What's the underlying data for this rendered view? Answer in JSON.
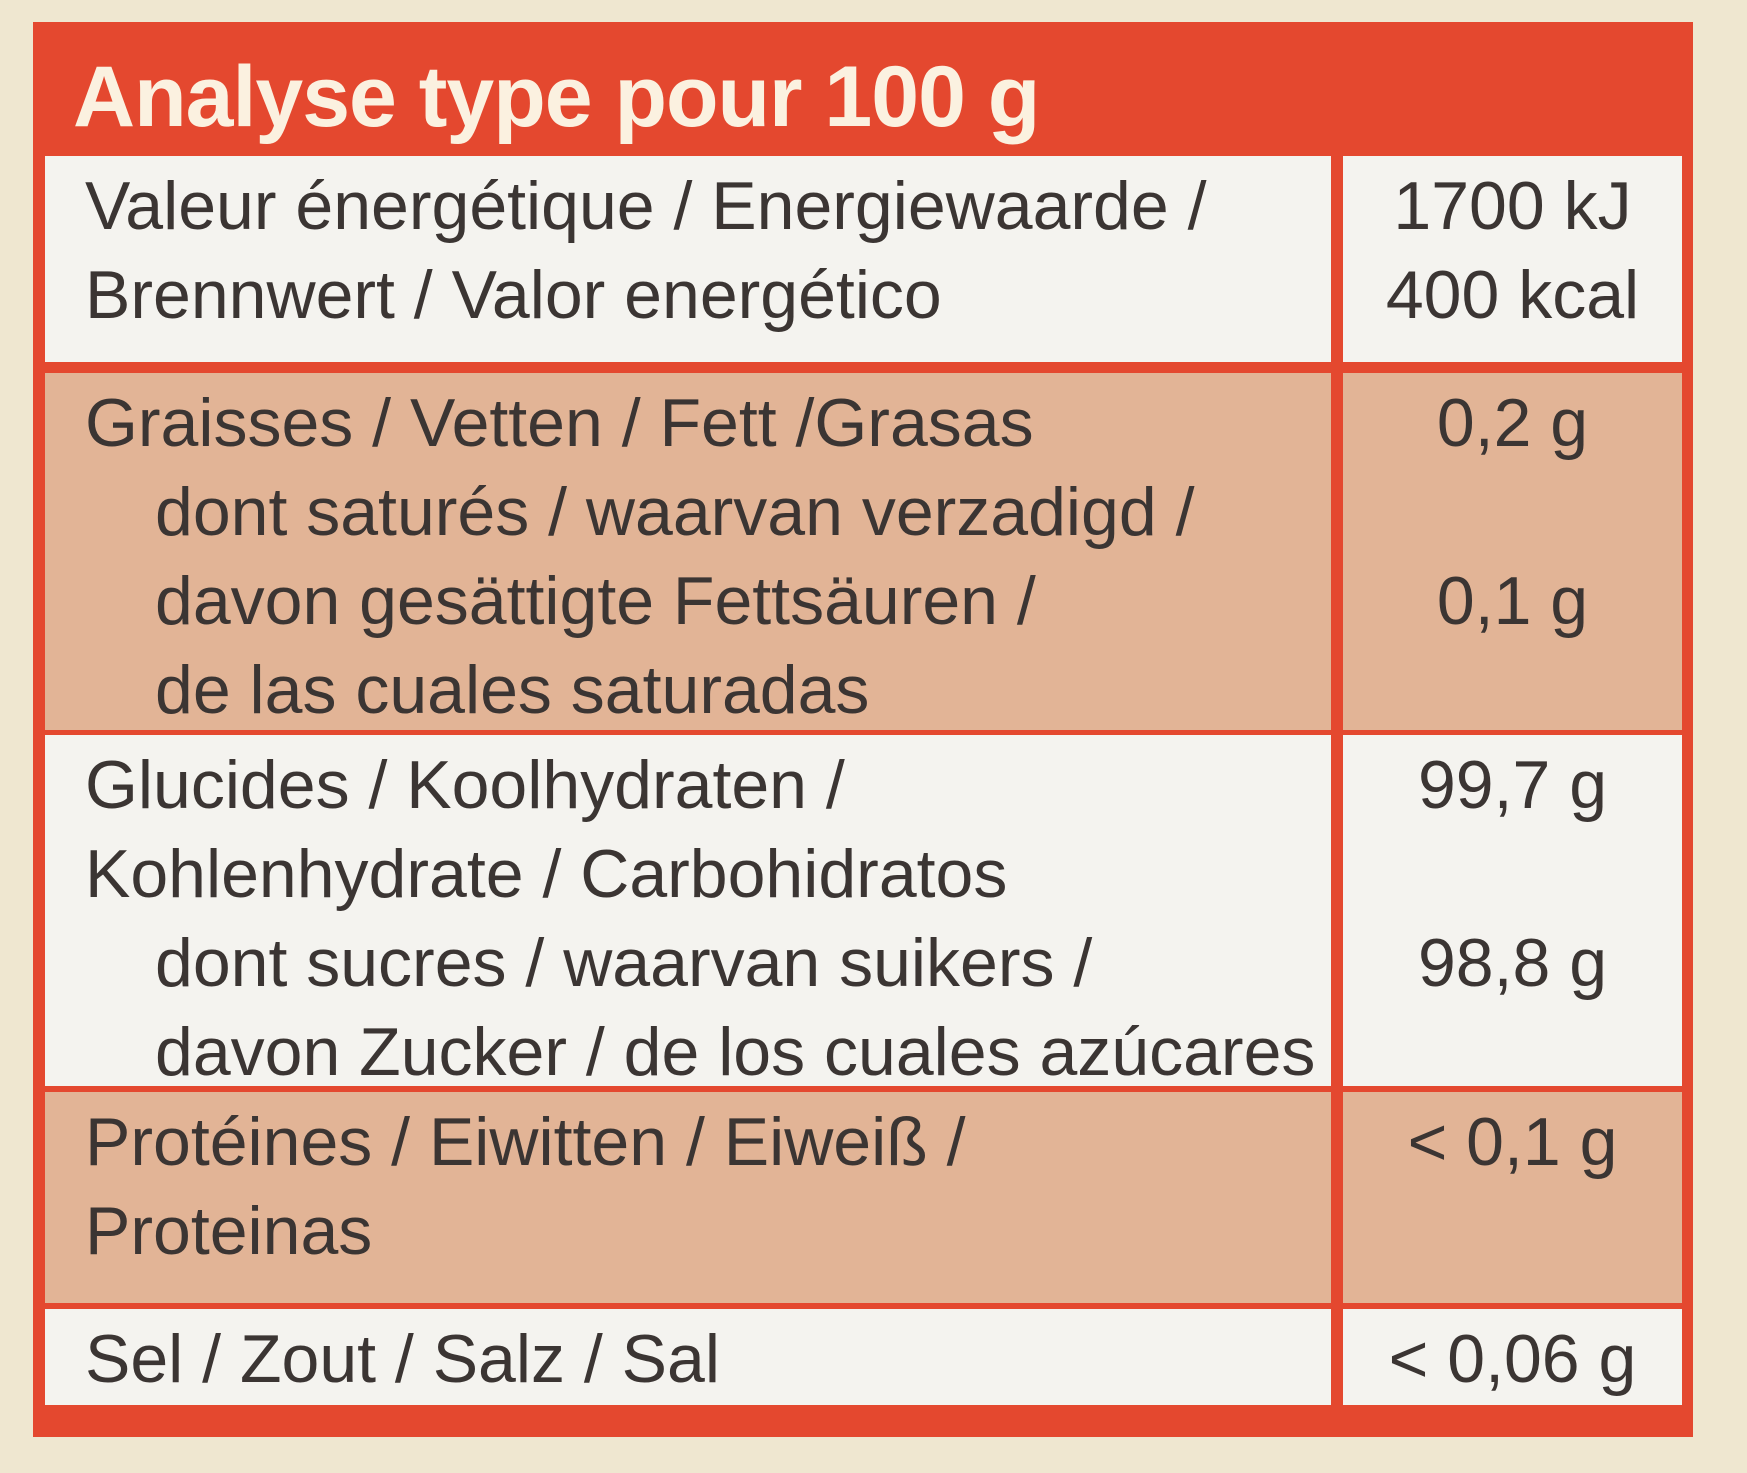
{
  "title": "Analyse type pour 100 g",
  "rows": [
    {
      "nutrient": [
        "Valeur énergétique / Energiewaarde /",
        "Brennwert / Valor energético"
      ],
      "values": [
        "1700 kJ",
        "400 kcal"
      ]
    },
    {
      "nutrient": [
        "Graisses / Vetten / Fett /Grasas"
      ],
      "values": [
        "0,2 g"
      ],
      "sub": [
        "dont saturés / waarvan verzadigd /",
        "davon gesättigte Fettsäuren /",
        "de las cuales saturadas"
      ],
      "sub_values": [
        "0,1 g"
      ]
    },
    {
      "nutrient": [
        "Glucides / Koolhydraten /",
        "Kohlenhydrate / Carbohidratos"
      ],
      "values": [
        "99,7 g"
      ],
      "sub": [
        "dont sucres / waarvan suikers /",
        "davon Zucker / de los cuales azúcares"
      ],
      "sub_values": [
        "98,8 g"
      ]
    },
    {
      "nutrient": [
        "Protéines / Eiwitten / Eiweiß /",
        "Proteinas"
      ],
      "values": [
        "< 0,1 g"
      ]
    },
    {
      "nutrient": [
        "Sel / Zout / Salz / Sal"
      ],
      "values": [
        "< 0,06 g"
      ]
    }
  ]
}
